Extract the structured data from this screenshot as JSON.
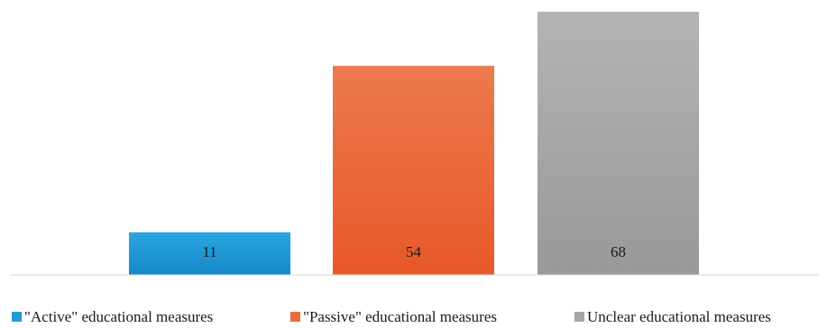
{
  "chart_data": {
    "type": "bar",
    "title": "",
    "xlabel": "",
    "ylabel": "",
    "ylim": [
      0,
      68
    ],
    "grid": false,
    "legend_position": "bottom",
    "data_labels": true,
    "series": [
      {
        "name": "\"Active\" educational measures",
        "values": [
          11
        ],
        "color": "#1f9ad6"
      },
      {
        "name": "\"Passive\" educational measures",
        "values": [
          54
        ],
        "color": "#ed6a3c"
      },
      {
        "name": "Unclear educational measures",
        "values": [
          68
        ],
        "color": "#a6a6a6"
      }
    ]
  }
}
